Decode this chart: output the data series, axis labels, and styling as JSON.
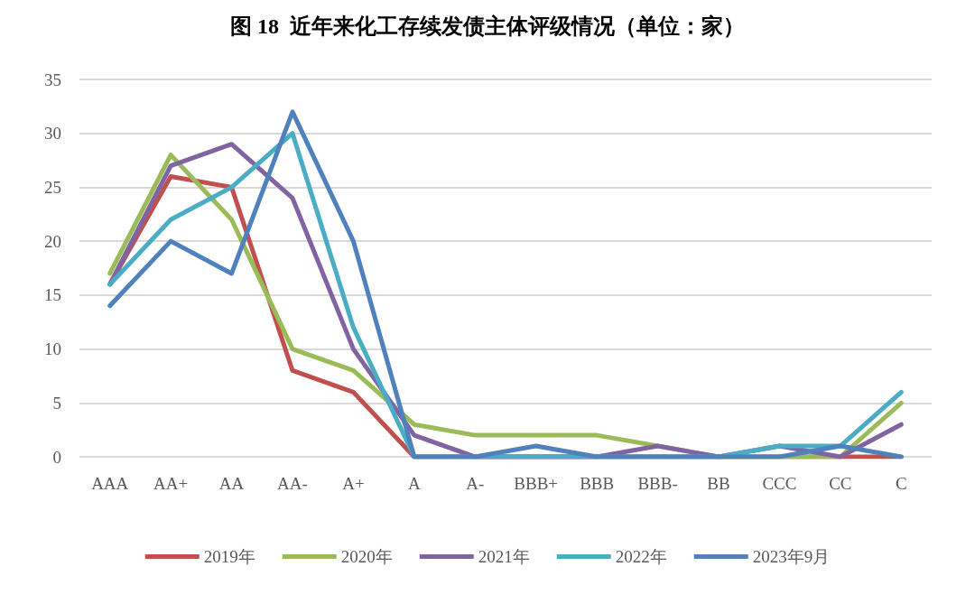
{
  "chart_data": {
    "type": "line",
    "title": "图 18  近年来化工存续发债主体评级情况（单位：家）",
    "categories": [
      "AAA",
      "AA+",
      "AA",
      "AA-",
      "A+",
      "A",
      "A-",
      "BBB+",
      "BBB",
      "BBB-",
      "BB",
      "CCC",
      "CC",
      "C"
    ],
    "series": [
      {
        "name": "2019年",
        "color": "#c0504d",
        "values": [
          16,
          26,
          25,
          8,
          6,
          0,
          0,
          0,
          0,
          0,
          0,
          0,
          0,
          0
        ]
      },
      {
        "name": "2020年",
        "color": "#9bbb59",
        "values": [
          17,
          28,
          22,
          10,
          8,
          3,
          2,
          2,
          2,
          1,
          0,
          0,
          0,
          5
        ]
      },
      {
        "name": "2021年",
        "color": "#8064a2",
        "values": [
          16,
          27,
          29,
          24,
          10,
          2,
          0,
          0,
          0,
          1,
          0,
          1,
          0,
          3
        ]
      },
      {
        "name": "2022年",
        "color": "#4bacc6",
        "values": [
          16,
          22,
          25,
          30,
          12,
          0,
          0,
          0,
          0,
          0,
          0,
          1,
          1,
          6
        ]
      },
      {
        "name": "2023年9月",
        "color": "#4f81bd",
        "values": [
          14,
          20,
          17,
          32,
          20,
          0,
          0,
          1,
          0,
          0,
          0,
          0,
          1,
          0
        ]
      }
    ],
    "ylim": [
      0,
      35
    ],
    "yticks": [
      0,
      5,
      10,
      15,
      20,
      25,
      30,
      35
    ],
    "grid": "y",
    "legend": "bottom",
    "marker": "none",
    "line_style": "solid"
  }
}
